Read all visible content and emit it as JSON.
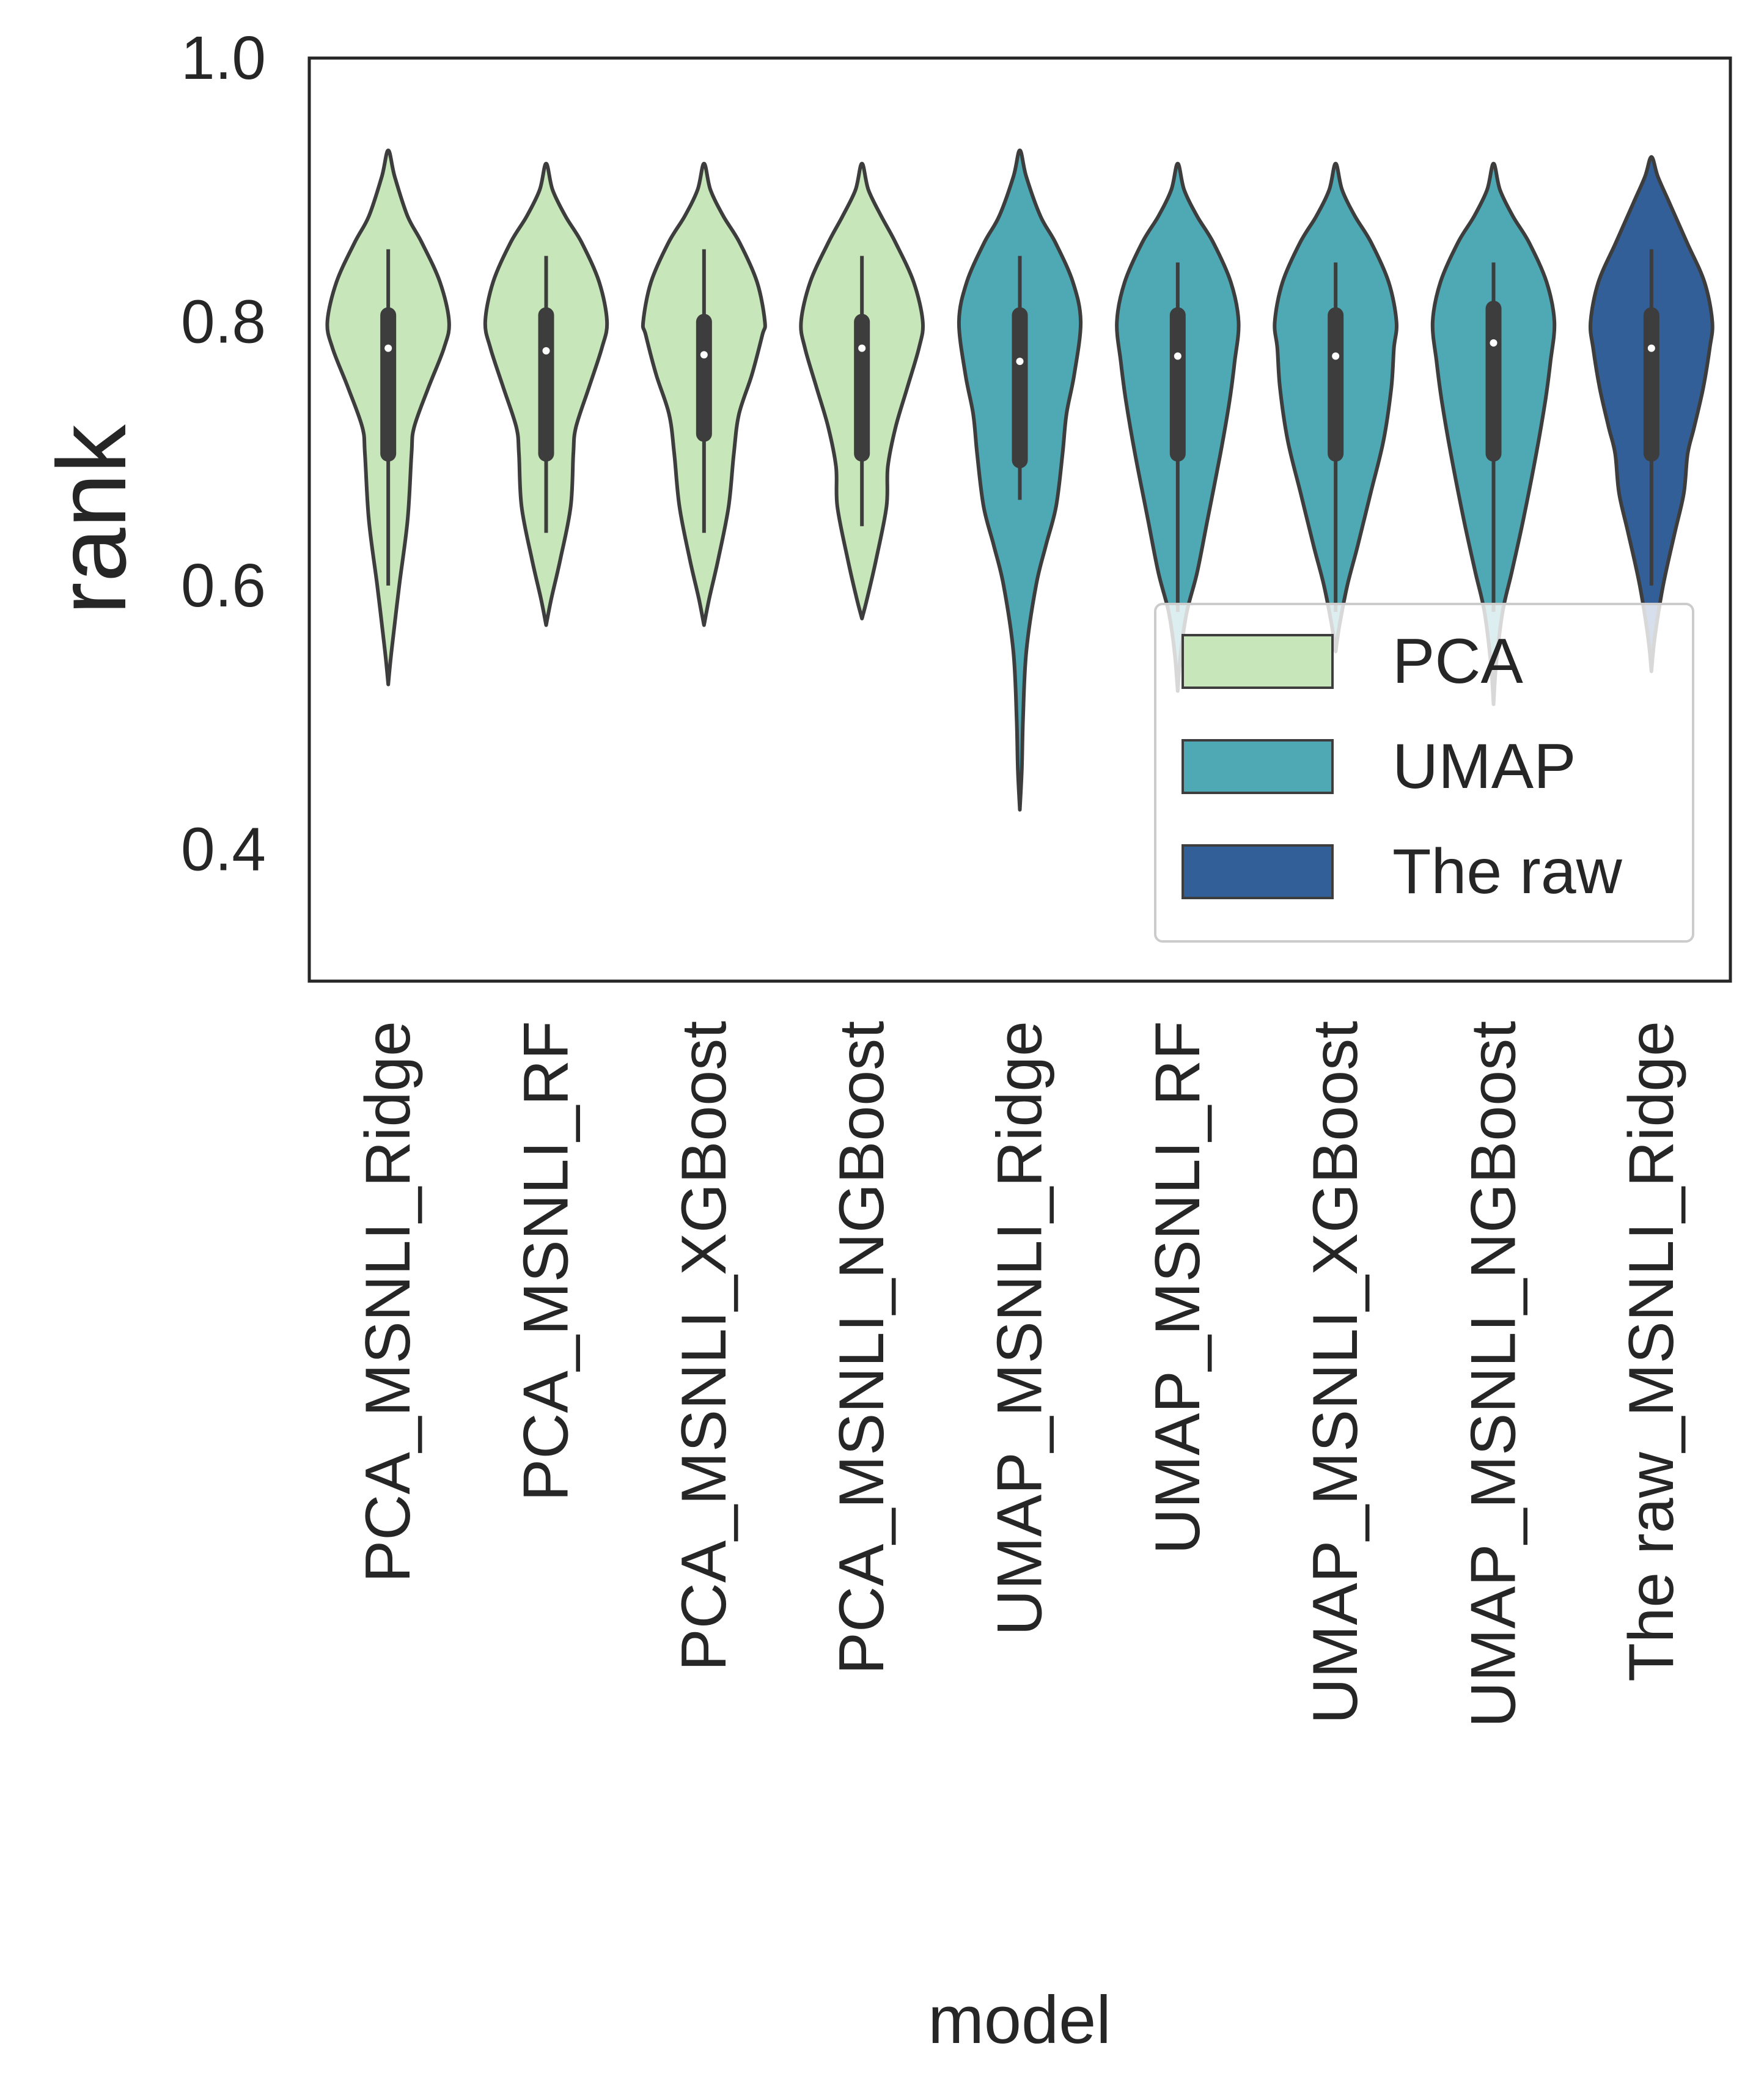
{
  "chart_data": {
    "type": "violin",
    "xlabel": "model",
    "ylabel": "rank",
    "ylim": [
      0.3,
      1.0
    ],
    "yticks": [
      "0.4",
      "0.6",
      "0.8",
      "1.0"
    ],
    "grid": false,
    "legend_position": "lower-right",
    "categories": [
      "PCA_MSNLI_Ridge",
      "PCA_MSNLI_RF",
      "PCA_MSNLI_XGBoost",
      "PCA_MSNLI_NGBoost",
      "UMAP_MSNLI_Ridge",
      "UMAP_MSNLI_RF",
      "UMAP_MSNLI_XGBoost",
      "UMAP_MSNLI_NGBoost",
      "The raw_MSNLI_Ridge"
    ],
    "groups": [
      {
        "name": "PCA",
        "color": "#c7e6b9"
      },
      {
        "name": "UMAP",
        "color": "#4fa9b5"
      },
      {
        "name": "The raw",
        "color": "#335f99"
      }
    ],
    "violins": [
      {
        "group": 0,
        "min": 0.525,
        "max": 0.93,
        "q1": 0.7,
        "median": 0.78,
        "q3": 0.805,
        "whisker_low": 0.6,
        "whisker_high": 0.855,
        "shape": [
          [
            0.525,
            0.0
          ],
          [
            0.55,
            0.05
          ],
          [
            0.6,
            0.17
          ],
          [
            0.65,
            0.3
          ],
          [
            0.7,
            0.36
          ],
          [
            0.72,
            0.4
          ],
          [
            0.75,
            0.62
          ],
          [
            0.78,
            0.86
          ],
          [
            0.8,
            0.94
          ],
          [
            0.83,
            0.8
          ],
          [
            0.86,
            0.52
          ],
          [
            0.88,
            0.3
          ],
          [
            0.91,
            0.1
          ],
          [
            0.93,
            0.0
          ]
        ]
      },
      {
        "group": 0,
        "min": 0.57,
        "max": 0.92,
        "q1": 0.7,
        "median": 0.778,
        "q3": 0.805,
        "whisker_low": 0.64,
        "whisker_high": 0.85,
        "shape": [
          [
            0.57,
            0.0
          ],
          [
            0.59,
            0.08
          ],
          [
            0.62,
            0.22
          ],
          [
            0.66,
            0.38
          ],
          [
            0.7,
            0.42
          ],
          [
            0.72,
            0.46
          ],
          [
            0.75,
            0.66
          ],
          [
            0.78,
            0.86
          ],
          [
            0.8,
            0.94
          ],
          [
            0.83,
            0.82
          ],
          [
            0.86,
            0.55
          ],
          [
            0.88,
            0.3
          ],
          [
            0.9,
            0.1
          ],
          [
            0.92,
            0.0
          ]
        ]
      },
      {
        "group": 0,
        "min": 0.57,
        "max": 0.92,
        "q1": 0.715,
        "median": 0.775,
        "q3": 0.8,
        "whisker_low": 0.64,
        "whisker_high": 0.855,
        "shape": [
          [
            0.57,
            0.0
          ],
          [
            0.59,
            0.08
          ],
          [
            0.62,
            0.22
          ],
          [
            0.66,
            0.38
          ],
          [
            0.7,
            0.46
          ],
          [
            0.73,
            0.54
          ],
          [
            0.76,
            0.74
          ],
          [
            0.79,
            0.9
          ],
          [
            0.8,
            0.94
          ],
          [
            0.83,
            0.82
          ],
          [
            0.86,
            0.55
          ],
          [
            0.88,
            0.3
          ],
          [
            0.9,
            0.1
          ],
          [
            0.92,
            0.0
          ]
        ]
      },
      {
        "group": 0,
        "min": 0.575,
        "max": 0.92,
        "q1": 0.7,
        "median": 0.78,
        "q3": 0.8,
        "whisker_low": 0.645,
        "whisker_high": 0.85,
        "shape": [
          [
            0.575,
            0.0
          ],
          [
            0.59,
            0.08
          ],
          [
            0.62,
            0.22
          ],
          [
            0.66,
            0.38
          ],
          [
            0.69,
            0.4
          ],
          [
            0.72,
            0.52
          ],
          [
            0.75,
            0.7
          ],
          [
            0.78,
            0.88
          ],
          [
            0.8,
            0.94
          ],
          [
            0.83,
            0.8
          ],
          [
            0.86,
            0.52
          ],
          [
            0.88,
            0.3
          ],
          [
            0.9,
            0.1
          ],
          [
            0.92,
            0.0
          ]
        ]
      },
      {
        "group": 1,
        "min": 0.43,
        "max": 0.93,
        "q1": 0.695,
        "median": 0.77,
        "q3": 0.805,
        "whisker_low": 0.665,
        "whisker_high": 0.85,
        "shape": [
          [
            0.43,
            0.0
          ],
          [
            0.46,
            0.03
          ],
          [
            0.5,
            0.05
          ],
          [
            0.55,
            0.1
          ],
          [
            0.6,
            0.25
          ],
          [
            0.63,
            0.4
          ],
          [
            0.66,
            0.56
          ],
          [
            0.7,
            0.66
          ],
          [
            0.73,
            0.72
          ],
          [
            0.76,
            0.84
          ],
          [
            0.8,
            0.94
          ],
          [
            0.83,
            0.82
          ],
          [
            0.86,
            0.55
          ],
          [
            0.88,
            0.32
          ],
          [
            0.91,
            0.1
          ],
          [
            0.93,
            0.0
          ]
        ]
      },
      {
        "group": 1,
        "min": 0.52,
        "max": 0.92,
        "q1": 0.7,
        "median": 0.774,
        "q3": 0.805,
        "whisker_low": 0.58,
        "whisker_high": 0.845,
        "shape": [
          [
            0.52,
            0.0
          ],
          [
            0.55,
            0.05
          ],
          [
            0.58,
            0.14
          ],
          [
            0.61,
            0.3
          ],
          [
            0.65,
            0.46
          ],
          [
            0.7,
            0.66
          ],
          [
            0.74,
            0.8
          ],
          [
            0.77,
            0.88
          ],
          [
            0.8,
            0.94
          ],
          [
            0.83,
            0.82
          ],
          [
            0.86,
            0.55
          ],
          [
            0.88,
            0.3
          ],
          [
            0.9,
            0.1
          ],
          [
            0.92,
            0.0
          ]
        ]
      },
      {
        "group": 1,
        "min": 0.55,
        "max": 0.92,
        "q1": 0.7,
        "median": 0.774,
        "q3": 0.805,
        "whisker_low": 0.58,
        "whisker_high": 0.845,
        "shape": [
          [
            0.55,
            0.0
          ],
          [
            0.57,
            0.06
          ],
          [
            0.6,
            0.18
          ],
          [
            0.63,
            0.34
          ],
          [
            0.67,
            0.54
          ],
          [
            0.71,
            0.74
          ],
          [
            0.75,
            0.86
          ],
          [
            0.78,
            0.9
          ],
          [
            0.8,
            0.94
          ],
          [
            0.83,
            0.82
          ],
          [
            0.86,
            0.55
          ],
          [
            0.88,
            0.3
          ],
          [
            0.9,
            0.1
          ],
          [
            0.92,
            0.0
          ]
        ]
      },
      {
        "group": 1,
        "min": 0.51,
        "max": 0.92,
        "q1": 0.7,
        "median": 0.784,
        "q3": 0.81,
        "whisker_low": 0.58,
        "whisker_high": 0.845,
        "shape": [
          [
            0.51,
            0.0
          ],
          [
            0.54,
            0.04
          ],
          [
            0.58,
            0.14
          ],
          [
            0.61,
            0.28
          ],
          [
            0.65,
            0.46
          ],
          [
            0.7,
            0.66
          ],
          [
            0.74,
            0.8
          ],
          [
            0.77,
            0.88
          ],
          [
            0.8,
            0.94
          ],
          [
            0.83,
            0.82
          ],
          [
            0.86,
            0.55
          ],
          [
            0.88,
            0.3
          ],
          [
            0.9,
            0.1
          ],
          [
            0.92,
            0.0
          ]
        ]
      },
      {
        "group": 2,
        "min": 0.535,
        "max": 0.925,
        "q1": 0.7,
        "median": 0.78,
        "q3": 0.805,
        "whisker_low": 0.6,
        "whisker_high": 0.855,
        "shape": [
          [
            0.535,
            0.0
          ],
          [
            0.56,
            0.05
          ],
          [
            0.6,
            0.18
          ],
          [
            0.64,
            0.36
          ],
          [
            0.67,
            0.5
          ],
          [
            0.7,
            0.56
          ],
          [
            0.72,
            0.66
          ],
          [
            0.75,
            0.8
          ],
          [
            0.78,
            0.9
          ],
          [
            0.8,
            0.94
          ],
          [
            0.83,
            0.82
          ],
          [
            0.86,
            0.55
          ],
          [
            0.89,
            0.28
          ],
          [
            0.91,
            0.1
          ],
          [
            0.925,
            0.0
          ]
        ]
      }
    ]
  }
}
